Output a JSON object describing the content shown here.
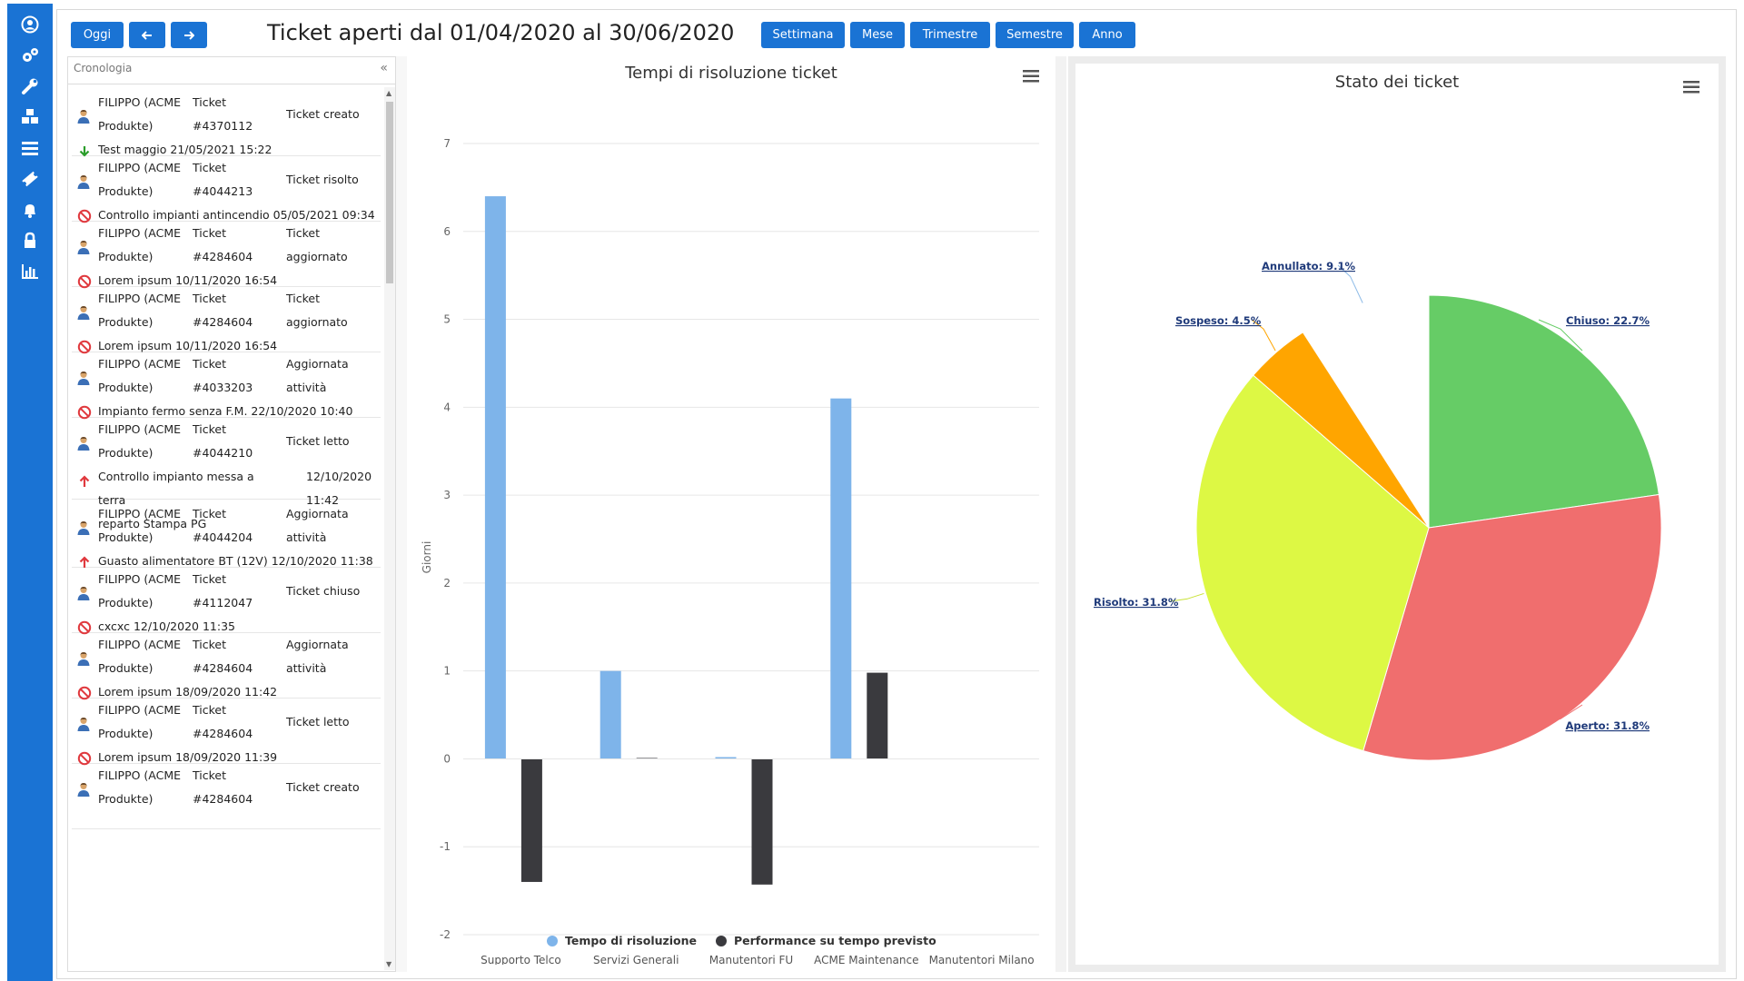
{
  "toolbar": {
    "today_label": "Oggi",
    "prev_icon": "arrow-left-icon",
    "next_icon": "arrow-right-icon",
    "title": "Ticket aperti dal 01/04/2020 al 30/06/2020",
    "period_buttons": [
      "Settimana",
      "Mese",
      "Trimestre",
      "Semestre",
      "Anno"
    ]
  },
  "sidebar": {
    "icons": [
      "user-circle-icon",
      "gears-icon",
      "wrench-icon",
      "cubes-icon",
      "list-icon",
      "ticket-icon",
      "bell-icon",
      "lock-icon",
      "bar-chart-icon"
    ]
  },
  "timeline": {
    "header": "Cronologia",
    "collapse": "«",
    "items": [
      {
        "name1": "FILIPPO (ACME",
        "name2": "Produkte)",
        "ticket1": "Ticket",
        "ticket2": "#4370112",
        "event1": "Ticket creato",
        "event2": "",
        "status": "arrow-down-green",
        "desc": "Test maggio 21/05/2021 15:22"
      },
      {
        "name1": "FILIPPO (ACME",
        "name2": "Produkte)",
        "ticket1": "Ticket",
        "ticket2": "#4044213",
        "event1": "Ticket risolto",
        "event2": "",
        "status": "blocked-red",
        "desc": "Controllo impianti antincendio 05/05/2021 09:34"
      },
      {
        "name1": "FILIPPO (ACME",
        "name2": "Produkte)",
        "ticket1": "Ticket",
        "ticket2": "#4284604",
        "event1": "Ticket",
        "event2": "aggiornato",
        "status": "blocked-red",
        "desc": "Lorem ipsum 10/11/2020 16:54"
      },
      {
        "name1": "FILIPPO (ACME",
        "name2": "Produkte)",
        "ticket1": "Ticket",
        "ticket2": "#4284604",
        "event1": "Ticket",
        "event2": "aggiornato",
        "status": "blocked-red",
        "desc": "Lorem ipsum 10/11/2020 16:54"
      },
      {
        "name1": "FILIPPO (ACME",
        "name2": "Produkte)",
        "ticket1": "Ticket",
        "ticket2": "#4033203",
        "event1": "Aggiornata",
        "event2": "attività",
        "status": "blocked-red",
        "desc": "Impianto fermo senza F.M. 22/10/2020 10:40"
      },
      {
        "name1": "FILIPPO (ACME",
        "name2": "Produkte)",
        "ticket1": "Ticket",
        "ticket2": "#4044210",
        "event1": "Ticket letto",
        "event2": "",
        "status": "arrow-up-red",
        "desc_a": "Controllo impianto messa a terra",
        "desc_b": "reparto Stampa PG",
        "date_a": "12/10/2020",
        "date_b": "11:42"
      },
      {
        "name1": "FILIPPO (ACME",
        "name2": "Produkte)",
        "ticket1": "Ticket",
        "ticket2": "#4044204",
        "event1": "Aggiornata",
        "event2": "attività",
        "status": "arrow-up-red",
        "desc": "Guasto alimentatore BT (12V) 12/10/2020 11:38"
      },
      {
        "name1": "FILIPPO (ACME",
        "name2": "Produkte)",
        "ticket1": "Ticket",
        "ticket2": "#4112047",
        "event1": "Ticket chiuso",
        "event2": "",
        "status": "blocked-red",
        "desc": "cxcxc 12/10/2020 11:35"
      },
      {
        "name1": "FILIPPO (ACME",
        "name2": "Produkte)",
        "ticket1": "Ticket",
        "ticket2": "#4284604",
        "event1": "Aggiornata",
        "event2": "attività",
        "status": "blocked-red",
        "desc": "Lorem ipsum 18/09/2020 11:42"
      },
      {
        "name1": "FILIPPO (ACME",
        "name2": "Produkte)",
        "ticket1": "Ticket",
        "ticket2": "#4284604",
        "event1": "Ticket letto",
        "event2": "",
        "status": "blocked-red",
        "desc": "Lorem ipsum 18/09/2020 11:39"
      },
      {
        "name1": "FILIPPO (ACME",
        "name2": "Produkte)",
        "ticket1": "Ticket",
        "ticket2": "#4284604",
        "event1": "Ticket creato",
        "event2": "",
        "status": "none",
        "desc": ""
      }
    ]
  },
  "chart_data": [
    {
      "type": "bar",
      "title": "Tempi di risoluzione ticket",
      "ylabel": "Giorni",
      "xlabel": "",
      "ylim": [
        -2,
        7
      ],
      "yticks": [
        7,
        6,
        5,
        4,
        3,
        2,
        1,
        0,
        -1,
        -2
      ],
      "categories": [
        "Supporto Telco",
        "Servizi Generali",
        "Manutentori FU",
        "ACME Maintenance",
        "Manutentori Milano"
      ],
      "series": [
        {
          "name": "Tempo di risoluzione",
          "color": "#7eb4ea",
          "values": [
            6.4,
            1.0,
            0.02,
            4.1,
            0
          ]
        },
        {
          "name": "Performance su tempo previsto",
          "color": "#3a3a3e",
          "values": [
            -1.4,
            0.01,
            -1.43,
            0.98,
            0
          ]
        }
      ],
      "grid": true,
      "legend": "bottom"
    },
    {
      "type": "pie",
      "title": "Stato dei ticket",
      "slices": [
        {
          "label": "Chiuso: 22.7%",
          "value": 22.7,
          "color": "#66cc66"
        },
        {
          "label": "Aperto: 31.8%",
          "value": 31.8,
          "color": "#f06e6e"
        },
        {
          "label": "Risolto: 31.8%",
          "value": 31.8,
          "color": "#ddf844"
        },
        {
          "label": "Sospeso: 4.5%",
          "value": 4.5,
          "color": "#ffa500"
        },
        {
          "label": "Annullato: 9.1%",
          "value": 9.1,
          "color": "#8fbce8"
        }
      ]
    }
  ],
  "colors": {
    "accent": "#1a73d4",
    "blocked": "#e0393e",
    "green_arrow": "#2a9d2a"
  }
}
